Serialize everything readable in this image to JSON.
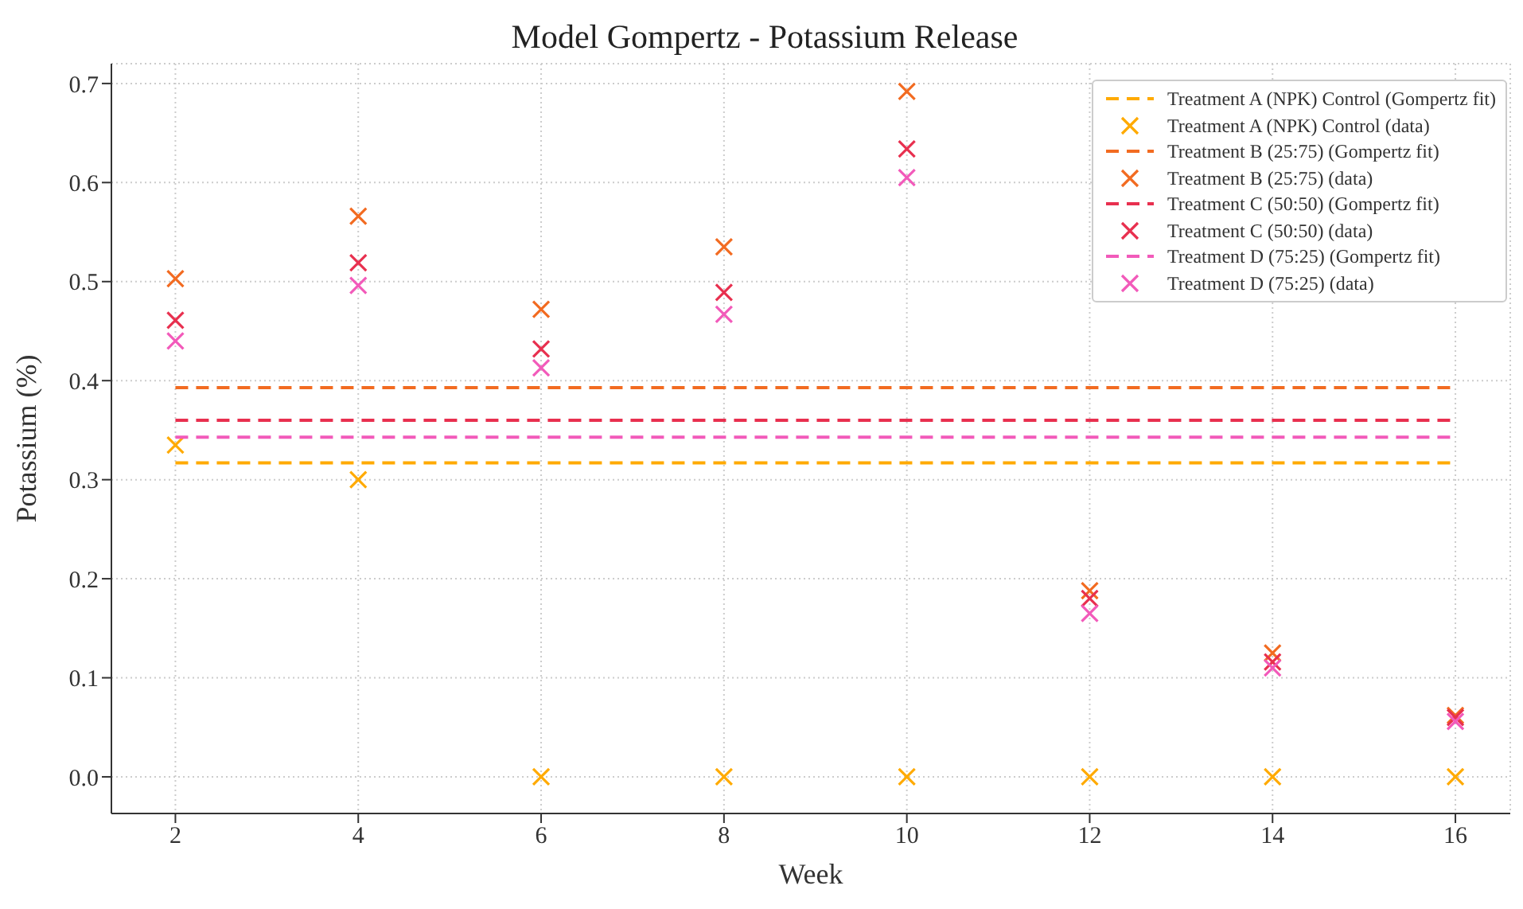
{
  "chart_data": {
    "type": "scatter",
    "title": "Model Gompertz - Potassium Release",
    "xlabel": "Week",
    "ylabel": "Potassium (%)",
    "x": [
      2,
      4,
      6,
      8,
      10,
      12,
      14,
      16
    ],
    "series": [
      {
        "name": "Treatment A (NPK) Control (Gompertz fit)",
        "type": "line",
        "color": "#ffaa00",
        "values": [
          0.317,
          0.317,
          0.317,
          0.317,
          0.317,
          0.317,
          0.317,
          0.317
        ],
        "line_style": "dashed",
        "marker": "none"
      },
      {
        "name": "Treatment A (NPK) Control (data)",
        "color": "#ffaa00",
        "values": [
          0.335,
          0.3,
          0,
          0,
          0,
          0,
          0,
          0
        ],
        "marker": "cross"
      },
      {
        "name": "Treatment B (25:75) (Gompertz fit)",
        "type": "line",
        "color": "#f26b21",
        "values": [
          0.393,
          0.393,
          0.393,
          0.393,
          0.393,
          0.393,
          0.393,
          0.393
        ],
        "line_style": "dashed",
        "marker": "none"
      },
      {
        "name": "Treatment B (25:75) (data)",
        "color": "#f26b21",
        "values": [
          0.503,
          0.566,
          0.472,
          0.535,
          0.692,
          0.188,
          0.125,
          0.062
        ],
        "marker": "cross"
      },
      {
        "name": "Treatment C (50:50) (Gompertz fit)",
        "type": "line",
        "color": "#e8304f",
        "values": [
          0.36,
          0.36,
          0.36,
          0.36,
          0.36,
          0.36,
          0.36,
          0.36
        ],
        "line_style": "dashed",
        "marker": "none"
      },
      {
        "name": "Treatment C (50:50) (data)",
        "color": "#e8304f",
        "values": [
          0.461,
          0.519,
          0.432,
          0.489,
          0.634,
          0.18,
          0.116,
          0.06
        ],
        "marker": "cross"
      },
      {
        "name": "Treatment D (75:25) (Gompertz fit)",
        "type": "line",
        "color": "#f25aba",
        "values": [
          0.343,
          0.343,
          0.343,
          0.343,
          0.343,
          0.343,
          0.343,
          0.343
        ],
        "line_style": "dashed",
        "marker": "none"
      },
      {
        "name": "Treatment D (75:25) (data)",
        "color": "#f25aba",
        "values": [
          0.44,
          0.496,
          0.413,
          0.467,
          0.605,
          0.165,
          0.11,
          0.056
        ],
        "marker": "cross"
      }
    ],
    "xlim": [
      1.3,
      16.6
    ],
    "xticks": [
      2,
      4,
      6,
      8,
      10,
      12,
      14,
      16
    ],
    "ylim": [
      -0.037,
      0.72
    ],
    "yticks": [
      {
        "value": 0,
        "label": "0.0"
      },
      0.1,
      0.2,
      0.3,
      0.4,
      0.5,
      0.6,
      0.7
    ],
    "grid": true,
    "legend": "top right"
  }
}
